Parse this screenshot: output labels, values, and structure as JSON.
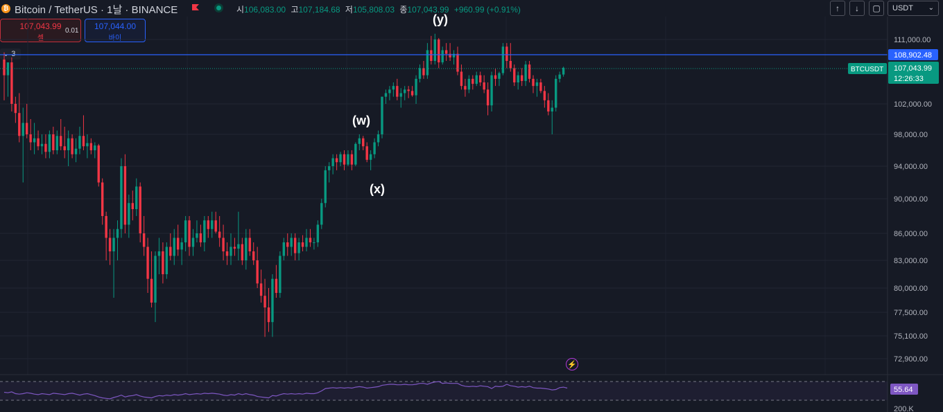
{
  "header": {
    "symbol": "Bitcoin / TetherUS · 1날 · BINANCE",
    "coin_glyph": "₿",
    "ohlc": {
      "open_label": "시",
      "open": "106,083.00",
      "high_label": "고",
      "high": "107,184.68",
      "low_label": "저",
      "low": "105,808.03",
      "close_label": "종",
      "close": "107,043.99",
      "change": "+960.99 (+0.91%)"
    }
  },
  "trade": {
    "sell_price": "107,043.99",
    "sell_label": "셀",
    "spread": "0.01",
    "buy_price": "107,044.00",
    "buy_label": "바이"
  },
  "indicator_toggle": {
    "chevron": "⌄",
    "count": "3"
  },
  "toolbar": {
    "up": "↑",
    "down": "↓",
    "fit": "▢",
    "currency": "USDT",
    "chevron": "⌄"
  },
  "price_axis": {
    "ticks": [
      "111,000.00",
      "102,000.00",
      "98,000.00",
      "94,000.00",
      "90,000.00",
      "86,000.00",
      "83,000.00",
      "80,000.00",
      "77,500.00",
      "75,100.00",
      "72,900.00"
    ],
    "hline_price": "108,902.48",
    "symbol_tag": "BTCUSDT",
    "last_price": "107,043.99",
    "countdown": "12:26:33"
  },
  "waves": {
    "w": "(w)",
    "x": "(x)",
    "y": "(y)"
  },
  "rsi": {
    "value": "55.64",
    "axis_label": "200.K"
  },
  "colors": {
    "up": "#089981",
    "down": "#f23645",
    "hline": "#2962ff",
    "rsi": "#7e57c2",
    "bg": "#161a25"
  },
  "chart_data": {
    "type": "candlestick",
    "last_price": 107043.99,
    "horizontal_line": 108902.48,
    "rsi_last": 55.64,
    "candles": [
      {
        "o": 108200,
        "h": 109200,
        "l": 102500,
        "c": 106000
      },
      {
        "o": 106000,
        "h": 107500,
        "l": 103000,
        "c": 107800
      },
      {
        "o": 107800,
        "h": 108500,
        "l": 101000,
        "c": 102000
      },
      {
        "o": 102000,
        "h": 103000,
        "l": 99500,
        "c": 100800
      },
      {
        "o": 100800,
        "h": 103500,
        "l": 97000,
        "c": 97800
      },
      {
        "o": 97800,
        "h": 101500,
        "l": 92000,
        "c": 99500
      },
      {
        "o": 99500,
        "h": 102000,
        "l": 97500,
        "c": 98000
      },
      {
        "o": 98000,
        "h": 100000,
        "l": 96000,
        "c": 97000
      },
      {
        "o": 97000,
        "h": 99500,
        "l": 95500,
        "c": 97500
      },
      {
        "o": 97500,
        "h": 98500,
        "l": 96000,
        "c": 96500
      },
      {
        "o": 96500,
        "h": 98000,
        "l": 95500,
        "c": 96800
      },
      {
        "o": 96800,
        "h": 98000,
        "l": 95000,
        "c": 95800
      },
      {
        "o": 95800,
        "h": 98500,
        "l": 95000,
        "c": 98000
      },
      {
        "o": 98000,
        "h": 99000,
        "l": 95500,
        "c": 96000
      },
      {
        "o": 96000,
        "h": 98500,
        "l": 95500,
        "c": 97800
      },
      {
        "o": 97800,
        "h": 100000,
        "l": 96000,
        "c": 96500
      },
      {
        "o": 96500,
        "h": 99000,
        "l": 95000,
        "c": 96000
      },
      {
        "o": 96000,
        "h": 98500,
        "l": 94000,
        "c": 97500
      },
      {
        "o": 97500,
        "h": 98000,
        "l": 95000,
        "c": 95500
      },
      {
        "o": 95500,
        "h": 97500,
        "l": 94500,
        "c": 96200
      },
      {
        "o": 96200,
        "h": 99000,
        "l": 95500,
        "c": 97800
      },
      {
        "o": 97800,
        "h": 100500,
        "l": 96000,
        "c": 96500
      },
      {
        "o": 96500,
        "h": 98000,
        "l": 95000,
        "c": 96900
      },
      {
        "o": 96900,
        "h": 97500,
        "l": 95500,
        "c": 96000
      },
      {
        "o": 96000,
        "h": 97000,
        "l": 95000,
        "c": 96600
      },
      {
        "o": 96600,
        "h": 96800,
        "l": 91500,
        "c": 92000
      },
      {
        "o": 92000,
        "h": 92500,
        "l": 87000,
        "c": 88000
      },
      {
        "o": 88000,
        "h": 88500,
        "l": 83000,
        "c": 85500
      },
      {
        "o": 85500,
        "h": 86500,
        "l": 82500,
        "c": 84000
      },
      {
        "o": 84000,
        "h": 86500,
        "l": 79000,
        "c": 85500
      },
      {
        "o": 85500,
        "h": 87500,
        "l": 83000,
        "c": 86500
      },
      {
        "o": 86500,
        "h": 95000,
        "l": 85500,
        "c": 94000
      },
      {
        "o": 94000,
        "h": 95500,
        "l": 86000,
        "c": 87000
      },
      {
        "o": 87000,
        "h": 90500,
        "l": 85500,
        "c": 89500
      },
      {
        "o": 89500,
        "h": 91000,
        "l": 87500,
        "c": 88800
      },
      {
        "o": 88800,
        "h": 92500,
        "l": 88000,
        "c": 91500
      },
      {
        "o": 91500,
        "h": 92000,
        "l": 85000,
        "c": 86000
      },
      {
        "o": 86000,
        "h": 88000,
        "l": 83500,
        "c": 84500
      },
      {
        "o": 84500,
        "h": 85500,
        "l": 79500,
        "c": 81000
      },
      {
        "o": 81000,
        "h": 84000,
        "l": 78000,
        "c": 78500
      },
      {
        "o": 78500,
        "h": 84000,
        "l": 76500,
        "c": 83500
      },
      {
        "o": 83500,
        "h": 85500,
        "l": 81500,
        "c": 84000
      },
      {
        "o": 84000,
        "h": 85000,
        "l": 80500,
        "c": 81500
      },
      {
        "o": 81500,
        "h": 85000,
        "l": 81000,
        "c": 84500
      },
      {
        "o": 84500,
        "h": 86000,
        "l": 83000,
        "c": 83500
      },
      {
        "o": 83500,
        "h": 86500,
        "l": 82500,
        "c": 85500
      },
      {
        "o": 85500,
        "h": 87000,
        "l": 83500,
        "c": 84200
      },
      {
        "o": 84200,
        "h": 85500,
        "l": 82500,
        "c": 85000
      },
      {
        "o": 85000,
        "h": 88000,
        "l": 84000,
        "c": 87500
      },
      {
        "o": 87500,
        "h": 88000,
        "l": 83500,
        "c": 84500
      },
      {
        "o": 84500,
        "h": 86500,
        "l": 83500,
        "c": 85500
      },
      {
        "o": 85500,
        "h": 87500,
        "l": 85000,
        "c": 86000
      },
      {
        "o": 86000,
        "h": 87000,
        "l": 84500,
        "c": 85000
      },
      {
        "o": 85000,
        "h": 88000,
        "l": 84000,
        "c": 87500
      },
      {
        "o": 87500,
        "h": 88000,
        "l": 85500,
        "c": 86500
      },
      {
        "o": 86500,
        "h": 88500,
        "l": 85500,
        "c": 87500
      },
      {
        "o": 87500,
        "h": 88500,
        "l": 86000,
        "c": 86200
      },
      {
        "o": 86200,
        "h": 88000,
        "l": 84500,
        "c": 85500
      },
      {
        "o": 85500,
        "h": 87000,
        "l": 83000,
        "c": 84000
      },
      {
        "o": 84000,
        "h": 85000,
        "l": 82500,
        "c": 83500
      },
      {
        "o": 83500,
        "h": 86000,
        "l": 82500,
        "c": 84500
      },
      {
        "o": 84500,
        "h": 85500,
        "l": 83500,
        "c": 84300
      },
      {
        "o": 84300,
        "h": 88500,
        "l": 83000,
        "c": 84800
      },
      {
        "o": 84800,
        "h": 85500,
        "l": 82500,
        "c": 83000
      },
      {
        "o": 83000,
        "h": 86500,
        "l": 82000,
        "c": 85500
      },
      {
        "o": 85500,
        "h": 86500,
        "l": 83500,
        "c": 84000
      },
      {
        "o": 84000,
        "h": 85000,
        "l": 82500,
        "c": 83000
      },
      {
        "o": 83000,
        "h": 84500,
        "l": 80000,
        "c": 80500
      },
      {
        "o": 80500,
        "h": 82000,
        "l": 78500,
        "c": 79200
      },
      {
        "o": 79200,
        "h": 81000,
        "l": 75000,
        "c": 78000
      },
      {
        "o": 78000,
        "h": 80000,
        "l": 75500,
        "c": 76500
      },
      {
        "o": 76500,
        "h": 81500,
        "l": 75000,
        "c": 81000
      },
      {
        "o": 81000,
        "h": 82500,
        "l": 79000,
        "c": 79500
      },
      {
        "o": 79500,
        "h": 84000,
        "l": 79000,
        "c": 83500
      },
      {
        "o": 83500,
        "h": 85500,
        "l": 83000,
        "c": 85000
      },
      {
        "o": 85000,
        "h": 86000,
        "l": 83500,
        "c": 84500
      },
      {
        "o": 84500,
        "h": 86000,
        "l": 83500,
        "c": 85500
      },
      {
        "o": 85500,
        "h": 86000,
        "l": 83000,
        "c": 83800
      },
      {
        "o": 83800,
        "h": 85500,
        "l": 83000,
        "c": 85000
      },
      {
        "o": 85000,
        "h": 85800,
        "l": 84000,
        "c": 84500
      },
      {
        "o": 84500,
        "h": 86500,
        "l": 84000,
        "c": 85500
      },
      {
        "o": 85500,
        "h": 86500,
        "l": 84500,
        "c": 85000
      },
      {
        "o": 85000,
        "h": 85500,
        "l": 84200,
        "c": 85000
      },
      {
        "o": 85000,
        "h": 87500,
        "l": 84500,
        "c": 87000
      },
      {
        "o": 87000,
        "h": 90000,
        "l": 86500,
        "c": 89500
      },
      {
        "o": 89500,
        "h": 94000,
        "l": 89000,
        "c": 93500
      },
      {
        "o": 93500,
        "h": 94500,
        "l": 92000,
        "c": 94000
      },
      {
        "o": 94000,
        "h": 95500,
        "l": 93000,
        "c": 95000
      },
      {
        "o": 95000,
        "h": 95500,
        "l": 93500,
        "c": 94500
      },
      {
        "o": 94500,
        "h": 95800,
        "l": 94000,
        "c": 95500
      },
      {
        "o": 95500,
        "h": 96000,
        "l": 93500,
        "c": 94200
      },
      {
        "o": 94200,
        "h": 96000,
        "l": 94000,
        "c": 95500
      },
      {
        "o": 95500,
        "h": 96000,
        "l": 93500,
        "c": 94200
      },
      {
        "o": 94200,
        "h": 97000,
        "l": 94000,
        "c": 96800
      },
      {
        "o": 96800,
        "h": 98000,
        "l": 96000,
        "c": 97500
      },
      {
        "o": 97500,
        "h": 97800,
        "l": 96000,
        "c": 96500
      },
      {
        "o": 96500,
        "h": 97000,
        "l": 94500,
        "c": 94800
      },
      {
        "o": 94800,
        "h": 96000,
        "l": 93500,
        "c": 95500
      },
      {
        "o": 95500,
        "h": 97500,
        "l": 95000,
        "c": 97000
      },
      {
        "o": 97000,
        "h": 98500,
        "l": 96500,
        "c": 98000
      },
      {
        "o": 98000,
        "h": 103000,
        "l": 97500,
        "c": 103000
      },
      {
        "o": 103000,
        "h": 104000,
        "l": 102000,
        "c": 103500
      },
      {
        "o": 103500,
        "h": 104500,
        "l": 102500,
        "c": 104000
      },
      {
        "o": 104000,
        "h": 105000,
        "l": 103000,
        "c": 104500
      },
      {
        "o": 104500,
        "h": 105500,
        "l": 102500,
        "c": 103000
      },
      {
        "o": 103000,
        "h": 104200,
        "l": 101500,
        "c": 103500
      },
      {
        "o": 103500,
        "h": 104500,
        "l": 102500,
        "c": 104000
      },
      {
        "o": 104000,
        "h": 104500,
        "l": 102800,
        "c": 103800
      },
      {
        "o": 103800,
        "h": 104500,
        "l": 103000,
        "c": 103200
      },
      {
        "o": 103200,
        "h": 106000,
        "l": 102000,
        "c": 105500
      },
      {
        "o": 105500,
        "h": 107500,
        "l": 105000,
        "c": 107000
      },
      {
        "o": 107000,
        "h": 108000,
        "l": 105500,
        "c": 106000
      },
      {
        "o": 106000,
        "h": 110500,
        "l": 105500,
        "c": 109500
      },
      {
        "o": 109500,
        "h": 111500,
        "l": 107500,
        "c": 108000
      },
      {
        "o": 108000,
        "h": 111800,
        "l": 107500,
        "c": 111000
      },
      {
        "o": 111000,
        "h": 111200,
        "l": 107000,
        "c": 107800
      },
      {
        "o": 107800,
        "h": 110000,
        "l": 107500,
        "c": 109500
      },
      {
        "o": 109500,
        "h": 110500,
        "l": 108000,
        "c": 109000
      },
      {
        "o": 109000,
        "h": 110500,
        "l": 108000,
        "c": 108500
      },
      {
        "o": 108500,
        "h": 109500,
        "l": 107500,
        "c": 109000
      },
      {
        "o": 109000,
        "h": 110000,
        "l": 106000,
        "c": 106500
      },
      {
        "o": 106500,
        "h": 107500,
        "l": 104000,
        "c": 104500
      },
      {
        "o": 104500,
        "h": 105500,
        "l": 103000,
        "c": 104000
      },
      {
        "o": 104000,
        "h": 106000,
        "l": 103500,
        "c": 105500
      },
      {
        "o": 105500,
        "h": 106000,
        "l": 104000,
        "c": 104800
      },
      {
        "o": 104800,
        "h": 106500,
        "l": 104500,
        "c": 106000
      },
      {
        "o": 106000,
        "h": 106500,
        "l": 104500,
        "c": 105000
      },
      {
        "o": 105000,
        "h": 106000,
        "l": 103500,
        "c": 104000
      },
      {
        "o": 104000,
        "h": 105000,
        "l": 100500,
        "c": 101800
      },
      {
        "o": 101800,
        "h": 106500,
        "l": 101000,
        "c": 106000
      },
      {
        "o": 106000,
        "h": 107000,
        "l": 104500,
        "c": 105500
      },
      {
        "o": 105500,
        "h": 106500,
        "l": 104500,
        "c": 106300
      },
      {
        "o": 106300,
        "h": 110500,
        "l": 106000,
        "c": 110000
      },
      {
        "o": 110000,
        "h": 110500,
        "l": 107000,
        "c": 108000
      },
      {
        "o": 108000,
        "h": 110500,
        "l": 106500,
        "c": 107000
      },
      {
        "o": 107000,
        "h": 107500,
        "l": 104500,
        "c": 105000
      },
      {
        "o": 105000,
        "h": 106500,
        "l": 104000,
        "c": 106000
      },
      {
        "o": 106000,
        "h": 107000,
        "l": 104500,
        "c": 105200
      },
      {
        "o": 105200,
        "h": 108000,
        "l": 104500,
        "c": 107500
      },
      {
        "o": 107500,
        "h": 108000,
        "l": 105000,
        "c": 105500
      },
      {
        "o": 105500,
        "h": 106000,
        "l": 103500,
        "c": 104500
      },
      {
        "o": 104500,
        "h": 105500,
        "l": 103000,
        "c": 105000
      },
      {
        "o": 105000,
        "h": 105500,
        "l": 103500,
        "c": 103800
      },
      {
        "o": 103800,
        "h": 104500,
        "l": 101500,
        "c": 102500
      },
      {
        "o": 102500,
        "h": 103500,
        "l": 100500,
        "c": 101000
      },
      {
        "o": 101000,
        "h": 102500,
        "l": 98000,
        "c": 101500
      },
      {
        "o": 101500,
        "h": 106000,
        "l": 101000,
        "c": 105500
      },
      {
        "o": 105500,
        "h": 106500,
        "l": 105000,
        "c": 106100
      },
      {
        "o": 106100,
        "h": 107200,
        "l": 105800,
        "c": 107044
      }
    ],
    "rsi": [
      47,
      46,
      48,
      44,
      43,
      44,
      46,
      45,
      43,
      42,
      44,
      43,
      42,
      45,
      44,
      43,
      42,
      44,
      45,
      43,
      41,
      43,
      44,
      42,
      40,
      37,
      35,
      34,
      33,
      36,
      38,
      41,
      37,
      39,
      40,
      42,
      39,
      37,
      36,
      35,
      38,
      40,
      39,
      41,
      40,
      42,
      41,
      42,
      44,
      42,
      43,
      44,
      43,
      45,
      44,
      45,
      44,
      43,
      41,
      40,
      42,
      41,
      44,
      42,
      44,
      42,
      41,
      38,
      37,
      36,
      35,
      40,
      39,
      42,
      44,
      43,
      44,
      43,
      44,
      43,
      45,
      44,
      44,
      46,
      50,
      55,
      56,
      57,
      56,
      57,
      56,
      57,
      56,
      58,
      59,
      58,
      56,
      57,
      58,
      59,
      62,
      63,
      64,
      64,
      63,
      63,
      64,
      63,
      63,
      64,
      66,
      66,
      64,
      67,
      69,
      70,
      66,
      67,
      66,
      66,
      66,
      62,
      60,
      59,
      60,
      59,
      61,
      60,
      59,
      55,
      60,
      59,
      60,
      64,
      61,
      60,
      58,
      59,
      58,
      60,
      57,
      56,
      56,
      55,
      54,
      52,
      53,
      57,
      58,
      56
    ]
  }
}
